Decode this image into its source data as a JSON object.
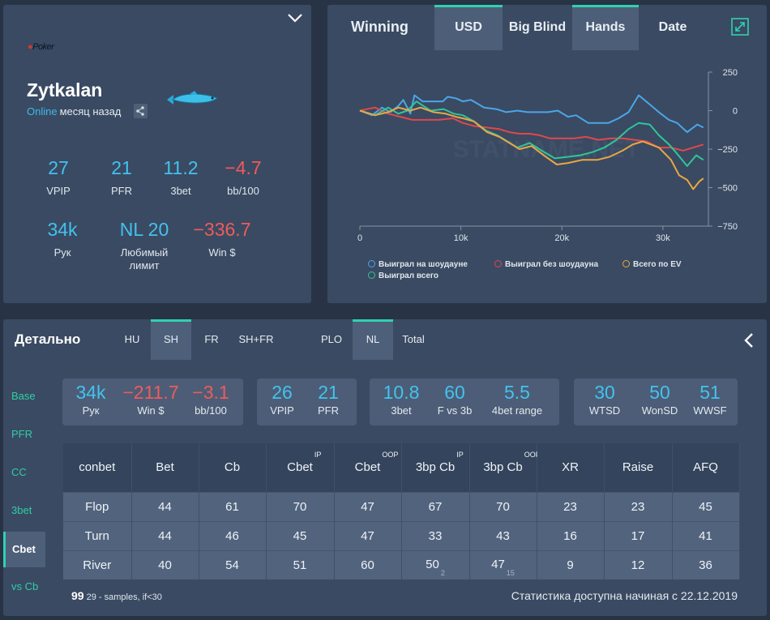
{
  "profile": {
    "logo_text": "Poker",
    "name": "Zytkalan",
    "status_online": "Online",
    "status_ago": "месяц назад",
    "stats": [
      {
        "value": "27",
        "label": "VPIP",
        "color": "blue"
      },
      {
        "value": "21",
        "label": "PFR",
        "color": "blue"
      },
      {
        "value": "11.2",
        "label": "3bet",
        "color": "blue"
      },
      {
        "value": "−4.7",
        "label": "bb/100",
        "color": "red"
      },
      {
        "value": "34k",
        "label": "Рук",
        "color": "blue"
      },
      {
        "value": "NL 20",
        "label": "Любимый лимит",
        "color": "blue"
      },
      {
        "value": "−336.7",
        "label": "Win $",
        "color": "red"
      }
    ]
  },
  "winning": {
    "title": "Winning",
    "tabs": [
      "USD",
      "Big Blind",
      "Hands",
      "Date"
    ],
    "selected_tabs": [
      "USD",
      "Hands"
    ],
    "watermark": "STATNAME.NET",
    "legend": [
      {
        "label": "Выиграл на шоудауне",
        "color": "#4aa6e8"
      },
      {
        "label": "Выиграл без шоудауна",
        "color": "#e0484c"
      },
      {
        "label": "Всего по EV",
        "color": "#e8a844"
      },
      {
        "label": "Выиграл всего",
        "color": "#2ec69a"
      }
    ]
  },
  "chart_data": {
    "type": "line",
    "x_ticks": [
      "0",
      "10k",
      "20k",
      "30k"
    ],
    "y_ticks": [
      "250",
      "0",
      "−250",
      "−500",
      "−750"
    ],
    "xlim": [
      0,
      34500
    ],
    "ylim": [
      -750,
      250
    ],
    "series": [
      {
        "name": "Выиграл на шоудауне",
        "color": "#4aa6e8",
        "x": [
          0,
          1200,
          2200,
          3000,
          3800,
          4300,
          5000,
          5400,
          6200,
          7300,
          8200,
          8700,
          9500,
          10200,
          11000,
          12300,
          13500,
          14500,
          15600,
          16600,
          17600,
          18600,
          19600,
          20600,
          21400,
          22600,
          23600,
          24600,
          25600,
          26600,
          27600,
          28700,
          29600,
          30600,
          31400,
          32400,
          33400,
          34000
        ],
        "y": [
          0,
          -30,
          20,
          -10,
          30,
          70,
          -20,
          100,
          60,
          60,
          60,
          90,
          80,
          60,
          70,
          20,
          10,
          -10,
          0,
          -10,
          -10,
          -10,
          0,
          -40,
          -30,
          -80,
          -80,
          -80,
          -50,
          -10,
          100,
          40,
          -10,
          -60,
          -80,
          -140,
          -90,
          -110
        ]
      },
      {
        "name": "Выиграл без шоудауна",
        "color": "#e0484c",
        "x": [
          0,
          1500,
          2800,
          4000,
          5200,
          6400,
          7800,
          9200,
          10200,
          11300,
          12600,
          13800,
          14800,
          15800,
          16800,
          17800,
          18800,
          20000,
          21200,
          22400,
          23600,
          24800,
          26000,
          27200,
          28400,
          29600,
          30800,
          32000,
          33000,
          34000
        ],
        "y": [
          0,
          20,
          -20,
          -40,
          -60,
          -60,
          -60,
          -50,
          -80,
          -100,
          -110,
          -120,
          -140,
          -150,
          -150,
          -160,
          -180,
          -180,
          -180,
          -170,
          -190,
          -180,
          -180,
          -190,
          -200,
          -240,
          -240,
          -260,
          -240,
          -220
        ]
      },
      {
        "name": "Выиграл всего",
        "color": "#2ec69a",
        "x": [
          0,
          1500,
          2800,
          3800,
          4700,
          5600,
          7000,
          8300,
          9300,
          10200,
          11300,
          12500,
          13600,
          14600,
          15600,
          16800,
          18000,
          19300,
          20600,
          21800,
          23000,
          24200,
          25400,
          26600,
          27600,
          28700,
          29600,
          30600,
          31400,
          32400,
          33300,
          34000
        ],
        "y": [
          0,
          -30,
          20,
          -20,
          0,
          60,
          0,
          10,
          -20,
          -30,
          -70,
          -130,
          -160,
          -200,
          -240,
          -210,
          -260,
          -310,
          -300,
          -290,
          -270,
          -240,
          -190,
          -120,
          -80,
          -90,
          -160,
          -220,
          -280,
          -360,
          -290,
          -320
        ]
      },
      {
        "name": "Всего по EV",
        "color": "#e8a844",
        "x": [
          0,
          1500,
          2800,
          3800,
          5000,
          6000,
          7300,
          8500,
          9500,
          10200,
          11300,
          12600,
          13800,
          14800,
          15800,
          17000,
          18200,
          19500,
          20600,
          22000,
          23500,
          24700,
          26000,
          27000,
          28000,
          29600,
          30800,
          31600,
          32400,
          33000,
          33600,
          34000
        ],
        "y": [
          0,
          -30,
          -10,
          20,
          0,
          20,
          -10,
          -20,
          -40,
          -50,
          -70,
          -140,
          -170,
          -210,
          -250,
          -230,
          -290,
          -350,
          -340,
          -320,
          -320,
          -300,
          -260,
          -220,
          -200,
          -240,
          -320,
          -420,
          -450,
          -510,
          -460,
          -440
        ]
      }
    ]
  },
  "detail": {
    "title": "Детально",
    "tabs": [
      "HU",
      "SH",
      "FR",
      "SH+FR",
      "PLO",
      "NL",
      "Total"
    ],
    "side": [
      "Base",
      "PFR",
      "CC",
      "3bet",
      "Cbet",
      "vs Cb"
    ],
    "boxes": [
      {
        "stats": [
          {
            "value": "34k",
            "label": "Рук",
            "color": "blue"
          },
          {
            "value": "−211.7",
            "label": "Win $",
            "color": "red"
          },
          {
            "value": "−3.1",
            "label": "bb/100",
            "color": "red"
          }
        ]
      },
      {
        "stats": [
          {
            "value": "26",
            "label": "VPIP",
            "color": "blue"
          },
          {
            "value": "21",
            "label": "PFR",
            "color": "blue"
          }
        ]
      },
      {
        "stats": [
          {
            "value": "10.8",
            "label": "3bet",
            "color": "blue"
          },
          {
            "value": "60",
            "label": "F vs 3b",
            "color": "blue"
          },
          {
            "value": "5.5",
            "label": "4bet range",
            "color": "blue"
          }
        ]
      },
      {
        "stats": [
          {
            "value": "30",
            "label": "WTSD",
            "color": "blue"
          },
          {
            "value": "50",
            "label": "WonSD",
            "color": "blue"
          },
          {
            "value": "51",
            "label": "WWSF",
            "color": "blue"
          }
        ]
      }
    ],
    "table": {
      "headers": [
        {
          "t": "conbet",
          "sup": ""
        },
        {
          "t": "Bet",
          "sup": ""
        },
        {
          "t": "Cb",
          "sup": ""
        },
        {
          "t": "Cbet",
          "sup": "IP"
        },
        {
          "t": "Cbet",
          "sup": "OOP"
        },
        {
          "t": "3bp Cb",
          "sup": "IP"
        },
        {
          "t": "3bp Cb",
          "sup": "OOP"
        },
        {
          "t": "XR",
          "sup": ""
        },
        {
          "t": "Raise",
          "sup": ""
        },
        {
          "t": "AFQ",
          "sup": ""
        }
      ],
      "rows": [
        {
          "cells": [
            {
              "v": "Flop"
            },
            {
              "v": "44"
            },
            {
              "v": "61"
            },
            {
              "v": "70"
            },
            {
              "v": "47"
            },
            {
              "v": "67"
            },
            {
              "v": "70"
            },
            {
              "v": "23"
            },
            {
              "v": "23"
            },
            {
              "v": "45"
            }
          ]
        },
        {
          "cells": [
            {
              "v": "Turn"
            },
            {
              "v": "44"
            },
            {
              "v": "46"
            },
            {
              "v": "45"
            },
            {
              "v": "47"
            },
            {
              "v": "33"
            },
            {
              "v": "43"
            },
            {
              "v": "16"
            },
            {
              "v": "17"
            },
            {
              "v": "41"
            }
          ]
        },
        {
          "cells": [
            {
              "v": "River"
            },
            {
              "v": "40"
            },
            {
              "v": "54"
            },
            {
              "v": "51"
            },
            {
              "v": "60"
            },
            {
              "v": "50",
              "s": "2"
            },
            {
              "v": "47",
              "s": "15"
            },
            {
              "v": "9"
            },
            {
              "v": "12"
            },
            {
              "v": "36"
            }
          ]
        }
      ]
    },
    "footer_num": "99",
    "footer_note": "29 - samples, if<30",
    "footer_right": "Статистика доступна начиная с 22.12.2019"
  }
}
